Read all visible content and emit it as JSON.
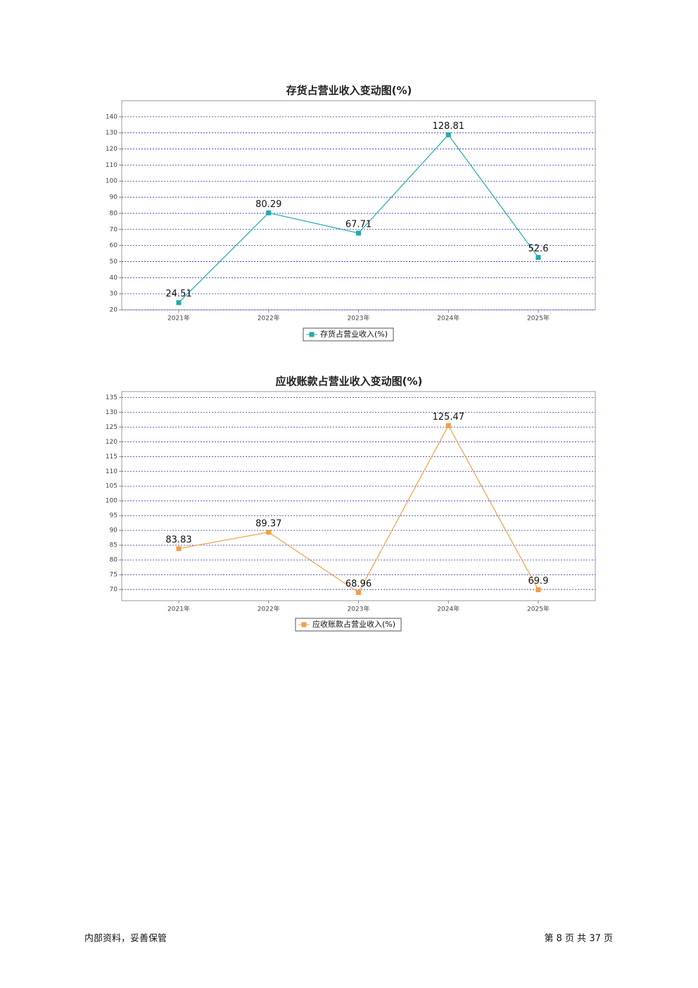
{
  "chart_data": [
    {
      "type": "line",
      "title": "存货占营业收入变动图(%)",
      "categories": [
        "2021年",
        "2022年",
        "2023年",
        "2024年",
        "2025年"
      ],
      "series": [
        {
          "name": "存货占营业收入(%)",
          "color": "#26aaa8",
          "values": [
            24.51,
            80.29,
            67.71,
            128.81,
            52.6
          ]
        }
      ],
      "ylim": [
        20,
        150
      ],
      "yticks": [
        20,
        30,
        40,
        50,
        60,
        70,
        80,
        90,
        100,
        110,
        120,
        130,
        140
      ],
      "grid": true
    },
    {
      "type": "line",
      "title": "应收账款占营业收入变动图(%)",
      "categories": [
        "2021年",
        "2022年",
        "2023年",
        "2024年",
        "2025年"
      ],
      "series": [
        {
          "name": "应收账款占营业收入(%)",
          "color": "#f0a04a",
          "values": [
            83.83,
            89.37,
            68.96,
            125.47,
            69.9
          ]
        }
      ],
      "ylim": [
        66.2,
        137
      ],
      "yticks": [
        70,
        75,
        80,
        85,
        90,
        95,
        100,
        105,
        110,
        115,
        120,
        125,
        130,
        135
      ],
      "grid": true
    }
  ],
  "footer": {
    "left": "内部资料，妥善保管",
    "right": "第 8 页 共 37 页"
  }
}
